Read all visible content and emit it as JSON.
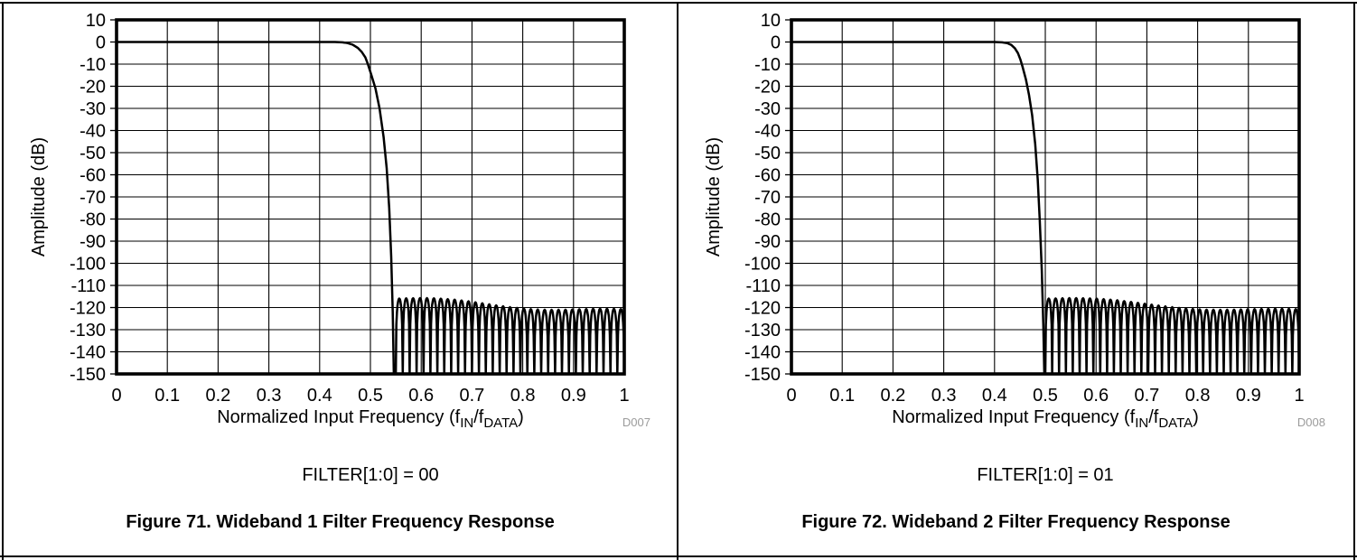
{
  "page": {
    "background": "#ffffff",
    "border_color": "#000000",
    "watermark_color": "#9b9b9b",
    "text_color": "#000000"
  },
  "chart_data": [
    {
      "id": "wideband-1-filter-response",
      "type": "line",
      "watermark": "D007",
      "condition_label": "FILTER[1:0] = 00",
      "caption": "Figure 71. Wideband 1 Filter Frequency Response",
      "ylabel": "Amplitude (dB)",
      "xlabel_parts": [
        {
          "t": "Normalized Input Frequency (f"
        },
        {
          "t": "IN",
          "sub": true
        },
        {
          "t": "/f"
        },
        {
          "t": "DATA",
          "sub": true
        },
        {
          "t": ")"
        }
      ],
      "xlim": [
        0,
        1
      ],
      "ylim": [
        -150,
        10
      ],
      "xticks": [
        0,
        0.1,
        0.2,
        0.3,
        0.4,
        0.5,
        0.6,
        0.7,
        0.8,
        0.9,
        1
      ],
      "yticks": [
        10,
        0,
        -10,
        -20,
        -30,
        -40,
        -50,
        -60,
        -70,
        -80,
        -90,
        -100,
        -110,
        -120,
        -130,
        -140,
        -150
      ],
      "grid": true,
      "line_color": "#000000",
      "series": [
        {
          "name": "Wideband 1 filter frequency response",
          "passband_level_db": 0,
          "passband_transition_points_db": [
            [
              0,
              0
            ],
            [
              0.43,
              0
            ],
            [
              0.445,
              -0.15
            ],
            [
              0.455,
              -0.5
            ],
            [
              0.465,
              -1.2
            ],
            [
              0.475,
              -2.6
            ],
            [
              0.483,
              -4.5
            ],
            [
              0.49,
              -7
            ],
            [
              0.495,
              -10
            ],
            [
              0.502,
              -15
            ],
            [
              0.51,
              -21
            ],
            [
              0.518,
              -30
            ],
            [
              0.526,
              -43
            ],
            [
              0.532,
              -57
            ],
            [
              0.537,
              -75
            ],
            [
              0.541,
              -97
            ],
            [
              0.544,
              -122
            ],
            [
              0.546,
              -150
            ]
          ],
          "stopband": {
            "start": 0.55,
            "end": 1,
            "lobe_count": 33,
            "peak_start_db": -116,
            "peak_end_db": -122,
            "wobble_db": 1.2,
            "wobble_cycles": 1.25,
            "floor_db": -150
          }
        }
      ]
    },
    {
      "id": "wideband-2-filter-response",
      "type": "line",
      "watermark": "D008",
      "condition_label": "FILTER[1:0] = 01",
      "caption": "Figure 72. Wideband 2 Filter Frequency Response",
      "ylabel": "Amplitude (dB)",
      "xlabel_parts": [
        {
          "t": "Normalized Input Frequency (f"
        },
        {
          "t": "IN",
          "sub": true
        },
        {
          "t": "/f"
        },
        {
          "t": "DATA",
          "sub": true
        },
        {
          "t": ")"
        }
      ],
      "xlim": [
        0,
        1
      ],
      "ylim": [
        -150,
        10
      ],
      "xticks": [
        0,
        0.1,
        0.2,
        0.3,
        0.4,
        0.5,
        0.6,
        0.7,
        0.8,
        0.9,
        1
      ],
      "yticks": [
        10,
        0,
        -10,
        -20,
        -30,
        -40,
        -50,
        -60,
        -70,
        -80,
        -90,
        -100,
        -110,
        -120,
        -130,
        -140,
        -150
      ],
      "grid": true,
      "line_color": "#000000",
      "series": [
        {
          "name": "Wideband 2 filter frequency response",
          "passband_level_db": 0,
          "passband_transition_points_db": [
            [
              0,
              0
            ],
            [
              0.4,
              0
            ],
            [
              0.415,
              -0.15
            ],
            [
              0.425,
              -0.5
            ],
            [
              0.433,
              -1.3
            ],
            [
              0.44,
              -2.8
            ],
            [
              0.446,
              -5
            ],
            [
              0.451,
              -8
            ],
            [
              0.455,
              -11
            ],
            [
              0.462,
              -17
            ],
            [
              0.468,
              -24
            ],
            [
              0.474,
              -33
            ],
            [
              0.48,
              -46
            ],
            [
              0.485,
              -62
            ],
            [
              0.489,
              -80
            ],
            [
              0.493,
              -103
            ],
            [
              0.496,
              -128
            ],
            [
              0.498,
              -150
            ]
          ],
          "stopband": {
            "start": 0.5,
            "end": 1,
            "lobe_count": 37,
            "peak_start_db": -116,
            "peak_end_db": -122,
            "wobble_db": 1.2,
            "wobble_cycles": 1.25,
            "floor_db": -150
          }
        }
      ]
    }
  ]
}
